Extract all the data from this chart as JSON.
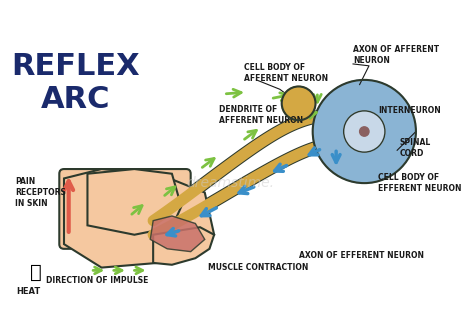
{
  "title_line1": "REFLEX",
  "title_line2": "ARC",
  "title_color": "#1a2a6c",
  "bg_color": "#ffffff",
  "labels": {
    "cell_body_afferent": "CELL BODY OF\nAFFERENT NEURON",
    "axon_afferent": "AXON OF AFFERENT\nNEURON",
    "dendrite_afferent": "DENDRITE OF\nAFFERENT NEURON",
    "interneuron": "INTERNEURON",
    "spinal_cord": "SPINAL\nCORD",
    "cell_body_efferent": "CELL BODY OF\nEFFERENT NEURON",
    "axon_efferent": "AXON OF EFFERENT NEURON",
    "muscle_contraction": "MUSCLE CONTRACTION",
    "pain_receptors": "PAIN\nRECEPTORS\nIN SKIN",
    "heat": "HEAT",
    "direction_impulse": "DIRECTION OF IMPULSE"
  },
  "label_color": "#1a1a1a",
  "green_arrow_color": "#7dc242",
  "blue_arrow_color": "#3a8fc9",
  "red_arrow_color": "#e05c4a",
  "skin_color": "#f5c8a0",
  "muscle_color": "#c9716a",
  "nerve_color_afferent": "#d4a843",
  "nerve_color_efferent": "#d4a843",
  "spinal_cord_color": "#8ab4d4",
  "outline_color": "#2d3a2d",
  "watermark": "dreamstime."
}
